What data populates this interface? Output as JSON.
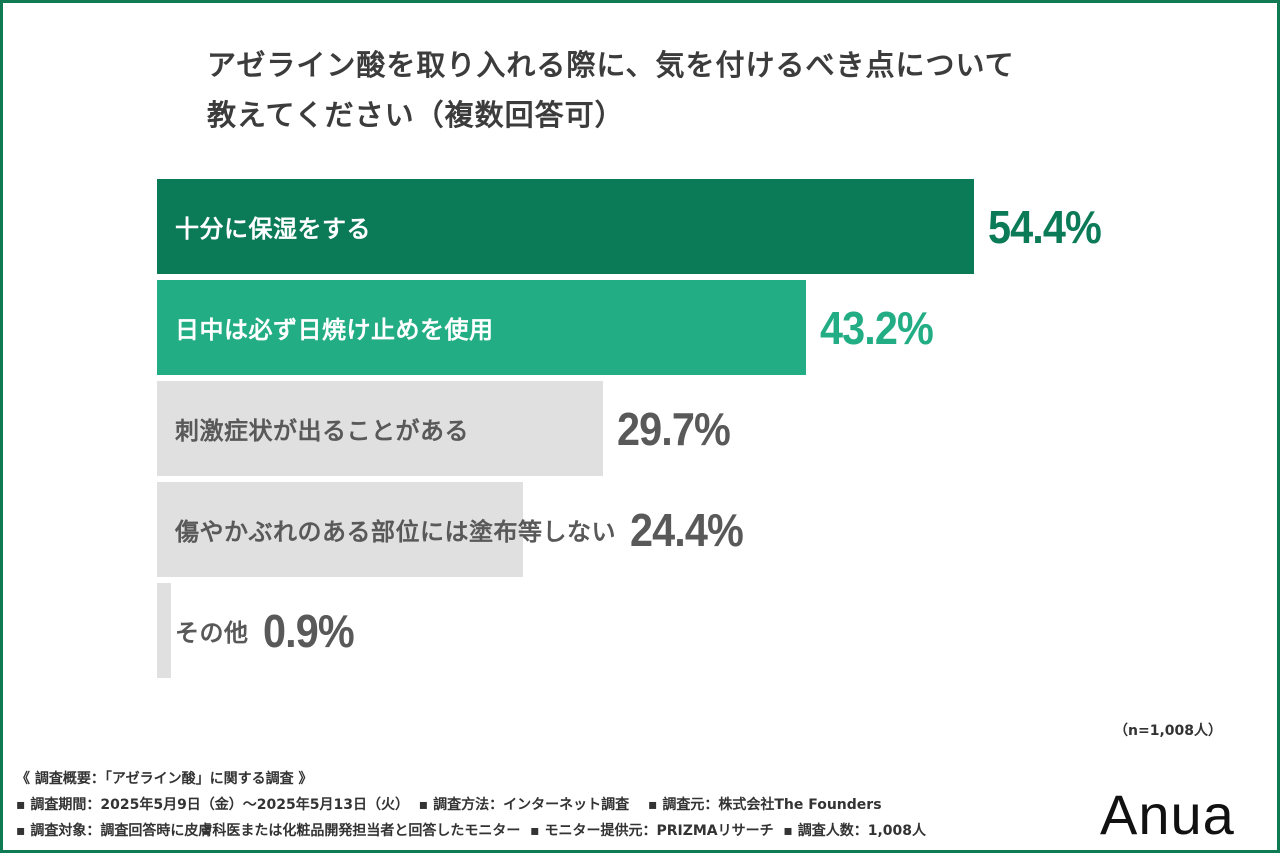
{
  "chart_data": {
    "type": "bar",
    "orientation": "horizontal",
    "title": "アゼライン酸を取り入れる際に、気を付けるべき点について教えてください（複数回答可）",
    "title_lines": [
      "アゼライン酸を取り入れる際に、気を付けるべき点について",
      "教えてください（複数回答可）"
    ],
    "categories": [
      "十分に保湿をする",
      "日中は必ず日焼け止めを使用",
      "刺激症状が出ることがある",
      "傷やかぶれのある部位には塗布等しない",
      "その他"
    ],
    "values": [
      54.4,
      43.2,
      29.7,
      24.4,
      0.9
    ],
    "value_labels": [
      "54.4%",
      "43.2%",
      "29.7%",
      "24.4%",
      "0.9%"
    ],
    "unit": "%",
    "bar_colors": [
      "#0b7a56",
      "#22ad84",
      "#e0e0e0",
      "#e0e0e0",
      "#e0e0e0"
    ],
    "label_colors": [
      "#ffffff",
      "#ffffff",
      "#595959",
      "#595959",
      "#595959"
    ],
    "value_colors": [
      "#0b7a56",
      "#22ad84",
      "#595959",
      "#595959",
      "#595959"
    ],
    "grid": false
  },
  "sample": "（n=1,008人）",
  "footer": [
    "《 調査概要：「アゼライン酸」に関する調査 》",
    "▪ 調査期間：2025年5月9日（金）〜2025年5月13日（火）  ▪ 調査方法：インターネット調査　 ▪ 調査元：株式会社The Founders",
    "▪ 調査対象：調査回答時に皮膚科医または化粧品開発担当者と回答したモニター  ▪ モニター提供元：PRIZMAリサーチ  ▪ 調査人数：1,008人"
  ],
  "logo": "Anua",
  "colors": {
    "border": "#107a55"
  }
}
